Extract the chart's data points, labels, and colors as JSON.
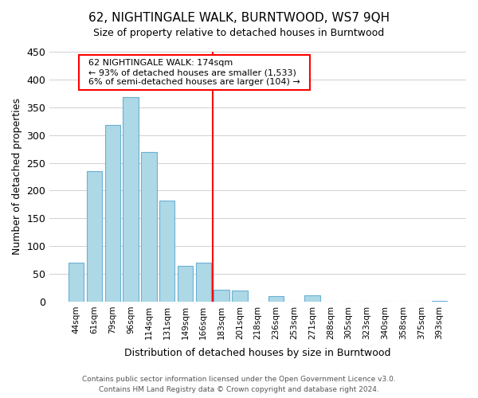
{
  "title": "62, NIGHTINGALE WALK, BURNTWOOD, WS7 9QH",
  "subtitle": "Size of property relative to detached houses in Burntwood",
  "xlabel": "Distribution of detached houses by size in Burntwood",
  "ylabel": "Number of detached properties",
  "footer_line1": "Contains HM Land Registry data © Crown copyright and database right 2024.",
  "footer_line2": "Contains public sector information licensed under the Open Government Licence v3.0.",
  "bin_labels": [
    "44sqm",
    "61sqm",
    "79sqm",
    "96sqm",
    "114sqm",
    "131sqm",
    "149sqm",
    "166sqm",
    "183sqm",
    "201sqm",
    "218sqm",
    "236sqm",
    "253sqm",
    "271sqm",
    "288sqm",
    "305sqm",
    "323sqm",
    "340sqm",
    "358sqm",
    "375sqm",
    "393sqm"
  ],
  "bin_values": [
    70,
    235,
    318,
    368,
    270,
    182,
    65,
    70,
    22,
    20,
    0,
    10,
    0,
    12,
    0,
    0,
    0,
    0,
    0,
    0,
    2
  ],
  "bar_color": "#add8e6",
  "bar_edgecolor": "#6ab0d4",
  "vline_x": 7.5,
  "vline_color": "red",
  "annotation_title": "62 NIGHTINGALE WALK: 174sqm",
  "annotation_line1": "← 93% of detached houses are smaller (1,533)",
  "annotation_line2": "6% of semi-detached houses are larger (104) →",
  "ylim": [
    0,
    450
  ],
  "yticks": [
    0,
    50,
    100,
    150,
    200,
    250,
    300,
    350,
    400,
    450
  ]
}
